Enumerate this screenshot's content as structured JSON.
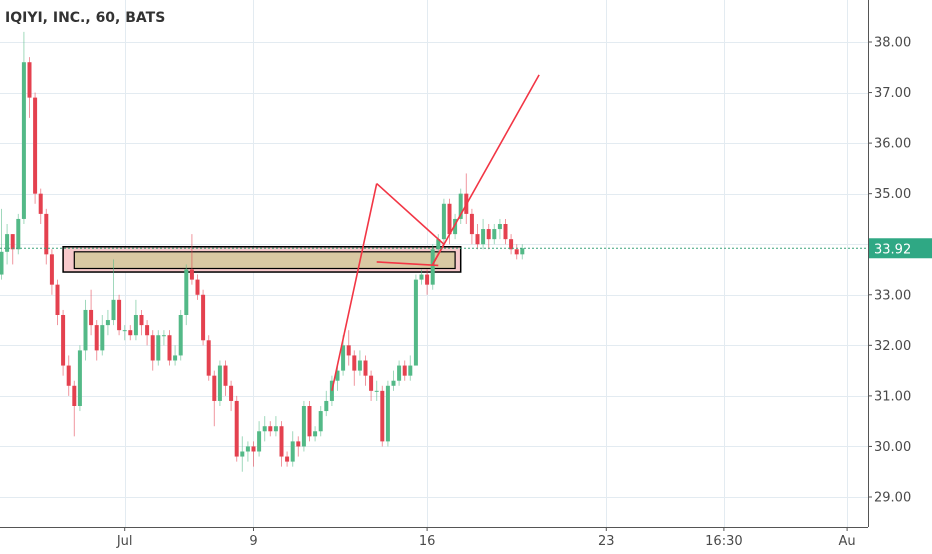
{
  "chart_data": {
    "type": "candlestick",
    "title": "IQIYI, INC., 60, BATS",
    "colors": {
      "up": "#53b987",
      "down": "#e4414f",
      "drawing": "#f23645",
      "zone_fill": "#d9c9a3",
      "zone_outer_fill": "#f7c9cc",
      "price_label_bg": "#2fa884",
      "price_line": "#3aa37a",
      "grid": "#e3ebf1",
      "axis": "#555555"
    },
    "y_axis": {
      "min": 28.5,
      "max": 38.5,
      "ticks": [
        29,
        30,
        31,
        32,
        33,
        34,
        35,
        36,
        37,
        38
      ],
      "tick_labels": [
        "29.00",
        "30.00",
        "31.00",
        "32.00",
        "33.00",
        "34.00",
        "35.00",
        "36.00",
        "37.00",
        "38.00"
      ]
    },
    "x_axis": {
      "index_min": 0,
      "index_max": 152,
      "ticks": [
        {
          "label": "Jul",
          "index": 22
        },
        {
          "label": "9",
          "index": 45
        },
        {
          "label": "16",
          "index": 76
        },
        {
          "label": "23",
          "index": 108
        },
        {
          "label": "16:30",
          "index": 129
        },
        {
          "label": "Au",
          "index": 151
        }
      ]
    },
    "last_price": {
      "value": 33.92,
      "label": "33.92"
    },
    "candles": [
      [
        33.4,
        33.85,
        34.7,
        33.3
      ],
      [
        33.85,
        34.2,
        34.4,
        33.6
      ],
      [
        34.2,
        33.9,
        34.2,
        33.6
      ],
      [
        33.9,
        34.5,
        34.6,
        33.8
      ],
      [
        34.5,
        37.6,
        38.2,
        34.4
      ],
      [
        37.6,
        36.9,
        37.7,
        36.5
      ],
      [
        36.9,
        35.0,
        37.0,
        34.8
      ],
      [
        35.0,
        34.6,
        35.1,
        34.4
      ],
      [
        34.6,
        33.8,
        34.7,
        33.6
      ],
      [
        33.8,
        33.2,
        33.9,
        33.0
      ],
      [
        33.2,
        32.6,
        33.3,
        32.4
      ],
      [
        32.6,
        31.6,
        32.7,
        31.4
      ],
      [
        31.6,
        31.2,
        31.8,
        31.0
      ],
      [
        31.2,
        30.8,
        31.3,
        30.2
      ],
      [
        30.8,
        31.9,
        32.0,
        30.7
      ],
      [
        31.9,
        32.7,
        32.9,
        31.7
      ],
      [
        32.7,
        32.4,
        33.1,
        32.2
      ],
      [
        32.4,
        31.9,
        32.5,
        31.7
      ],
      [
        31.9,
        32.4,
        32.6,
        31.8
      ],
      [
        32.4,
        32.5,
        32.7,
        32.2
      ],
      [
        32.5,
        32.9,
        33.7,
        32.4
      ],
      [
        32.9,
        32.3,
        33.0,
        32.2
      ],
      [
        32.3,
        32.3,
        32.4,
        32.1
      ],
      [
        32.3,
        32.2,
        32.4,
        32.1
      ],
      [
        32.2,
        32.6,
        32.9,
        32.1
      ],
      [
        32.6,
        32.4,
        32.7,
        32.2
      ],
      [
        32.4,
        32.2,
        32.5,
        32.0
      ],
      [
        32.2,
        31.7,
        32.3,
        31.5
      ],
      [
        31.7,
        32.2,
        32.3,
        31.6
      ],
      [
        32.2,
        32.2,
        32.3,
        32.0
      ],
      [
        32.2,
        31.7,
        32.3,
        31.6
      ],
      [
        31.7,
        31.8,
        32.0,
        31.6
      ],
      [
        31.8,
        32.6,
        32.7,
        31.7
      ],
      [
        32.6,
        33.5,
        33.6,
        32.4
      ],
      [
        33.5,
        33.3,
        34.2,
        33.2
      ],
      [
        33.3,
        33.0,
        33.4,
        32.9
      ],
      [
        33.0,
        32.1,
        33.1,
        32.0
      ],
      [
        32.1,
        31.4,
        32.2,
        31.3
      ],
      [
        31.4,
        30.9,
        31.5,
        30.4
      ],
      [
        30.9,
        31.6,
        31.7,
        30.8
      ],
      [
        31.6,
        31.2,
        31.7,
        31.0
      ],
      [
        31.2,
        30.9,
        31.3,
        30.7
      ],
      [
        30.9,
        29.8,
        31.0,
        29.7
      ],
      [
        29.8,
        29.9,
        30.2,
        29.5
      ],
      [
        29.9,
        30.0,
        30.1,
        29.7
      ],
      [
        30.0,
        29.9,
        30.1,
        29.6
      ],
      [
        29.9,
        30.3,
        30.5,
        29.8
      ],
      [
        30.3,
        30.4,
        30.6,
        30.1
      ],
      [
        30.4,
        30.3,
        30.5,
        30.2
      ],
      [
        30.3,
        30.4,
        30.6,
        30.2
      ],
      [
        30.4,
        29.8,
        30.5,
        29.6
      ],
      [
        29.8,
        29.7,
        29.9,
        29.6
      ],
      [
        29.7,
        30.1,
        30.3,
        29.6
      ],
      [
        30.1,
        30.0,
        30.2,
        29.8
      ],
      [
        30.0,
        30.8,
        30.9,
        29.9
      ],
      [
        30.8,
        30.2,
        30.9,
        30.1
      ],
      [
        30.2,
        30.3,
        30.4,
        30.1
      ],
      [
        30.3,
        30.7,
        30.8,
        30.2
      ],
      [
        30.7,
        30.9,
        31.1,
        30.6
      ],
      [
        30.9,
        31.3,
        31.4,
        30.8
      ],
      [
        31.3,
        31.5,
        31.6,
        31.1
      ],
      [
        31.5,
        32.0,
        32.2,
        31.4
      ],
      [
        32.0,
        31.8,
        32.3,
        31.6
      ],
      [
        31.8,
        31.5,
        31.9,
        31.2
      ],
      [
        31.5,
        31.7,
        31.9,
        31.4
      ],
      [
        31.7,
        31.4,
        31.8,
        31.2
      ],
      [
        31.4,
        31.1,
        31.5,
        30.9
      ],
      [
        31.1,
        31.1,
        31.3,
        30.9
      ],
      [
        31.1,
        30.1,
        31.2,
        30.0
      ],
      [
        30.1,
        31.2,
        31.3,
        30.0
      ],
      [
        31.2,
        31.3,
        31.5,
        31.1
      ],
      [
        31.3,
        31.6,
        31.7,
        31.2
      ],
      [
        31.6,
        31.4,
        31.7,
        31.3
      ],
      [
        31.4,
        31.6,
        31.8,
        31.3
      ],
      [
        31.6,
        33.3,
        33.4,
        31.9
      ],
      [
        33.3,
        33.4,
        33.5,
        33.2
      ],
      [
        33.4,
        33.2,
        33.5,
        33.0
      ],
      [
        33.2,
        33.9,
        34.0,
        33.1
      ],
      [
        33.9,
        34.1,
        34.2,
        33.8
      ],
      [
        34.1,
        34.8,
        34.9,
        34.0
      ],
      [
        34.8,
        34.2,
        34.9,
        34.0
      ],
      [
        34.2,
        34.5,
        34.6,
        34.1
      ],
      [
        34.5,
        35.0,
        35.1,
        34.4
      ],
      [
        35.0,
        34.6,
        35.4,
        34.4
      ],
      [
        34.6,
        34.2,
        34.7,
        34.0
      ],
      [
        34.2,
        34.0,
        34.4,
        33.9
      ],
      [
        34.0,
        34.3,
        34.5,
        33.9
      ],
      [
        34.3,
        34.1,
        34.4,
        33.9
      ],
      [
        34.1,
        34.3,
        34.4,
        34.0
      ],
      [
        34.3,
        34.4,
        34.5,
        34.1
      ],
      [
        34.4,
        34.1,
        34.5,
        34.0
      ],
      [
        34.1,
        33.9,
        34.2,
        33.8
      ],
      [
        33.9,
        33.8,
        34.0,
        33.7
      ],
      [
        33.8,
        33.92,
        34.0,
        33.7
      ]
    ],
    "drawings": {
      "zone_outer": {
        "x0_index": 11,
        "x1_index": 82,
        "y0": 33.95,
        "y1": 33.45
      },
      "zone_inner": {
        "x0_index": 13,
        "x1_index": 81,
        "y0": 33.85,
        "y1": 33.52
      },
      "lines": [
        {
          "from": [
            59,
            31.1
          ],
          "to": [
            67,
            35.2
          ]
        },
        {
          "from": [
            67,
            35.2
          ],
          "to": [
            79,
            34.0
          ]
        },
        {
          "from": [
            79,
            34.0
          ],
          "to": [
            77,
            33.6
          ]
        },
        {
          "from": [
            67,
            33.65
          ],
          "to": [
            78,
            33.58
          ]
        },
        {
          "from": [
            77,
            33.6
          ],
          "to": [
            96,
            37.35
          ]
        }
      ]
    }
  }
}
